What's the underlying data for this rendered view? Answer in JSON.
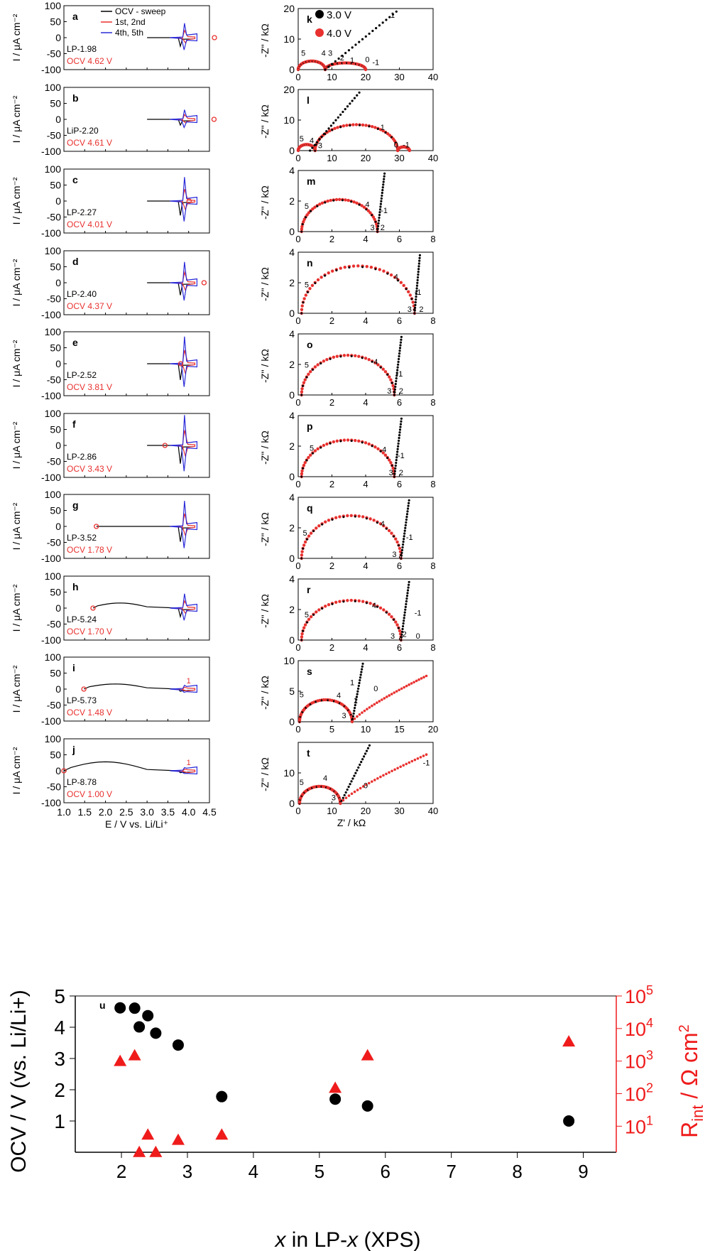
{
  "chart_data": [
    {
      "type": "line",
      "group": "cyclic-voltammetry",
      "ylabel": "I / μA cm⁻²",
      "xlabel": "E / V vs. Li/Li⁺",
      "xlim": [
        1.0,
        4.5
      ],
      "ylim": [
        -100,
        100
      ],
      "xticks": [
        "1.0",
        "1.5",
        "2.0",
        "2.5",
        "3.0",
        "3.5",
        "4.0",
        "4.5"
      ],
      "yticks": [
        "100",
        "50",
        "0",
        "-50",
        "-100"
      ],
      "legend": [
        "OCV - sweep",
        "1st, 2nd",
        "4th, 5th"
      ],
      "colors": {
        "sweep": "#000000",
        "first": "#e8312f",
        "fourth": "#2b2bd9"
      },
      "panels": [
        {
          "letter": "a",
          "sample": "LP-1.98",
          "ocv_label": "OCV 4.62 V",
          "ocv": 4.62,
          "sweep_start": 3.0,
          "peak": 45
        },
        {
          "letter": "b",
          "sample": "LiP-2.20",
          "ocv_label": "OCV 4.61 V",
          "ocv": 4.61,
          "sweep_start": 3.0,
          "peak": 30
        },
        {
          "letter": "c",
          "sample": "LP-2.27",
          "ocv_label": "OCV 4.01 V",
          "ocv": 4.01,
          "sweep_start": 3.0,
          "peak": 75
        },
        {
          "letter": "d",
          "sample": "LP-2.40",
          "ocv_label": "OCV 4.37 V",
          "ocv": 4.37,
          "sweep_start": 3.0,
          "peak": 65
        },
        {
          "letter": "e",
          "sample": "LP-2.52",
          "ocv_label": "OCV 3.81 V",
          "ocv": 3.81,
          "sweep_start": 3.0,
          "peak": 85
        },
        {
          "letter": "f",
          "sample": "LP-2.86",
          "ocv_label": "OCV 3.43 V",
          "ocv": 3.43,
          "sweep_start": 3.0,
          "peak": 95
        },
        {
          "letter": "g",
          "sample": "LP-3.52",
          "ocv_label": "OCV 1.78 V",
          "ocv": 1.78,
          "sweep_start": 1.78,
          "peak": 80
        },
        {
          "letter": "h",
          "sample": "LP-5.24",
          "ocv_label": "OCV 1.70 V",
          "ocv": 1.7,
          "sweep_start": 1.7,
          "peak": 45
        },
        {
          "letter": "i",
          "sample": "LP-5.73",
          "ocv_label": "OCV 1.48 V",
          "ocv": 1.48,
          "sweep_start": 1.48,
          "peak": 12,
          "cycle_label": "1"
        },
        {
          "letter": "j",
          "sample": "LP-8.78",
          "ocv_label": "OCV 1.00 V",
          "ocv": 1.0,
          "sweep_start": 1.0,
          "peak": 10,
          "cycle_label": "1"
        }
      ]
    },
    {
      "type": "scatter",
      "group": "impedance-nyquist",
      "ylabel": "-Z'' / kΩ",
      "xlabel": "Z' / kΩ",
      "legend": [
        "3.0 V",
        "4.0 V"
      ],
      "colors": {
        "v3": "#000000",
        "v4": "#e8312f"
      },
      "panels": [
        {
          "letter": "k",
          "xlim": [
            0,
            40
          ],
          "ylim": [
            0,
            20
          ],
          "xticks": [
            0,
            10,
            20,
            30,
            40
          ],
          "yticks": [
            0,
            10,
            20
          ],
          "arcs": [
            [
              0,
              8,
              2.8
            ],
            [
              8,
              20,
              2.2
            ]
          ],
          "spike_x": 8,
          "spike_slope": 0.9,
          "markers": [
            {
              "t": "5",
              "x": 1.5,
              "y": 4.5
            },
            {
              "t": "4",
              "x": 7.5,
              "y": 4.5
            },
            {
              "t": "3",
              "x": 9.5,
              "y": 4.5
            },
            {
              "t": "2",
              "x": 13,
              "y": 3
            },
            {
              "t": "1",
              "x": 16,
              "y": 2.2
            },
            {
              "t": "0",
              "x": 20.5,
              "y": 2.5
            },
            {
              "t": "-1",
              "x": 23,
              "y": 1.5
            },
            {
              "t": "1",
              "x": 28,
              "y": 17
            }
          ]
        },
        {
          "letter": "l",
          "xlim": [
            0,
            40
          ],
          "ylim": [
            0,
            20
          ],
          "xticks": [
            0,
            10,
            20,
            30,
            40
          ],
          "yticks": [
            0,
            10,
            20
          ],
          "arcs": [
            [
              0,
              5,
              2
            ],
            [
              5,
              29.5,
              8.5
            ],
            [
              29.5,
              33,
              1.2
            ]
          ],
          "spike_x": 3.5,
          "spike_slope": 1.3,
          "markers": [
            {
              "t": "5",
              "x": 1,
              "y": 3
            },
            {
              "t": "4",
              "x": 4,
              "y": 2.5
            },
            {
              "t": "3",
              "x": 6.5,
              "y": 0.8
            },
            {
              "t": "1",
              "x": 25,
              "y": 6.8
            },
            {
              "t": "0",
              "x": 29,
              "y": 1
            },
            {
              "t": "-1",
              "x": 32,
              "y": 1
            }
          ]
        },
        {
          "letter": "m",
          "xlim": [
            0,
            8
          ],
          "ylim": [
            0,
            4
          ],
          "xticks": [
            0,
            2,
            4,
            6,
            8
          ],
          "yticks": [
            0,
            2,
            4
          ],
          "arcs": [
            [
              0.2,
              4.7,
              2.1
            ]
          ],
          "spike_x": 4.7,
          "spike_slope": 9,
          "markers": [
            {
              "t": "5",
              "x": 0.5,
              "y": 1.5
            },
            {
              "t": "4",
              "x": 4.1,
              "y": 1.6
            },
            {
              "t": "-1",
              "x": 5.1,
              "y": 1.2
            },
            {
              "t": "3",
              "x": 4.4,
              "y": 0.1
            },
            {
              "t": "2",
              "x": 5,
              "y": 0.1
            }
          ]
        },
        {
          "letter": "n",
          "xlim": [
            0,
            8
          ],
          "ylim": [
            0,
            4
          ],
          "xticks": [
            0,
            2,
            4,
            6,
            8
          ],
          "yticks": [
            0,
            2,
            4
          ],
          "arcs": [
            [
              0.2,
              6.9,
              3.1
            ]
          ],
          "spike_x": 6.9,
          "spike_slope": 12,
          "markers": [
            {
              "t": "5",
              "x": 0.5,
              "y": 1.7
            },
            {
              "t": "4",
              "x": 5.8,
              "y": 2.2
            },
            {
              "t": "-1",
              "x": 7.1,
              "y": 1.2
            },
            {
              "t": "3",
              "x": 6.6,
              "y": 0.1
            },
            {
              "t": "2",
              "x": 7.3,
              "y": 0.1
            }
          ]
        },
        {
          "letter": "o",
          "xlim": [
            0,
            8
          ],
          "ylim": [
            0,
            4
          ],
          "xticks": [
            0,
            2,
            4,
            6,
            8
          ],
          "yticks": [
            0,
            2,
            4
          ],
          "arcs": [
            [
              0.2,
              5.7,
              2.6
            ]
          ],
          "spike_x": 5.7,
          "spike_slope": 9,
          "markers": [
            {
              "t": "5",
              "x": 0.5,
              "y": 1.8
            },
            {
              "t": "4",
              "x": 4.6,
              "y": 2
            },
            {
              "t": "-1",
              "x": 6,
              "y": 1.2
            },
            {
              "t": "3",
              "x": 5.4,
              "y": 0.1
            },
            {
              "t": "2",
              "x": 6.1,
              "y": 0.1
            }
          ]
        },
        {
          "letter": "p",
          "xlim": [
            0,
            8
          ],
          "ylim": [
            0,
            4
          ],
          "xticks": [
            0,
            2,
            4,
            6,
            8
          ],
          "yticks": [
            0,
            2,
            4
          ],
          "arcs": [
            [
              0.2,
              5.7,
              2.4
            ]
          ],
          "spike_x": 5.7,
          "spike_slope": 9,
          "markers": [
            {
              "t": "5",
              "x": 0.8,
              "y": 1.7
            },
            {
              "t": "4",
              "x": 5.1,
              "y": 1.6
            },
            {
              "t": "-1",
              "x": 6.1,
              "y": 1.2
            },
            {
              "t": "3",
              "x": 5.5,
              "y": 0.1
            },
            {
              "t": "2",
              "x": 6.1,
              "y": 0.1
            }
          ]
        },
        {
          "letter": "q",
          "xlim": [
            0,
            8
          ],
          "ylim": [
            0,
            4
          ],
          "xticks": [
            0,
            2,
            4,
            6,
            8
          ],
          "yticks": [
            0,
            2,
            4
          ],
          "arcs": [
            [
              0.2,
              6.1,
              2.8
            ]
          ],
          "spike_x": 6.1,
          "spike_slope": 8,
          "markers": [
            {
              "t": "5",
              "x": 0.4,
              "y": 1.5
            },
            {
              "t": "4",
              "x": 5,
              "y": 2.1
            },
            {
              "t": "-1",
              "x": 6.6,
              "y": 1.2
            },
            {
              "t": "3",
              "x": 5.7,
              "y": 0.1
            }
          ]
        },
        {
          "letter": "r",
          "xlim": [
            0,
            8
          ],
          "ylim": [
            0,
            4
          ],
          "xticks": [
            0,
            2,
            4,
            6,
            8
          ],
          "yticks": [
            0,
            2,
            4
          ],
          "arcs": [
            [
              0.2,
              6.1,
              2.6
            ]
          ],
          "spike_x": 6.1,
          "spike_slope": 8,
          "markers": [
            {
              "t": "5",
              "x": 0.5,
              "y": 1.5
            },
            {
              "t": "4",
              "x": 4.5,
              "y": 2.1
            },
            {
              "t": "-1",
              "x": 7.1,
              "y": 1.6
            },
            {
              "t": "3",
              "x": 5.6,
              "y": 0.1
            },
            {
              "t": "2",
              "x": 6.3,
              "y": 0.2
            },
            {
              "t": "0",
              "x": 7.1,
              "y": 0.1
            }
          ]
        },
        {
          "letter": "s",
          "xlim": [
            0,
            20
          ],
          "ylim": [
            0,
            10
          ],
          "xticks": [
            0,
            5,
            10,
            15,
            20
          ],
          "yticks": [
            0,
            5,
            10
          ],
          "arcs": [
            [
              0.2,
              8,
              3.6
            ]
          ],
          "spike_x": 8,
          "spike_slope": 6,
          "tail_end": [
            19,
            7.5
          ],
          "markers": [
            {
              "t": "5",
              "x": 0.5,
              "y": 4
            },
            {
              "t": "4",
              "x": 6,
              "y": 3.9
            },
            {
              "t": "1",
              "x": 8,
              "y": 6
            },
            {
              "t": "1",
              "x": 8.5,
              "y": 3
            },
            {
              "t": "3",
              "x": 6.8,
              "y": 0.6
            },
            {
              "t": "0",
              "x": 11.5,
              "y": 5
            }
          ]
        },
        {
          "letter": "t",
          "xlim": [
            0,
            40
          ],
          "ylim": [
            0,
            20
          ],
          "xticks": [
            0,
            10,
            20,
            30,
            40
          ],
          "yticks": [
            0,
            10
          ],
          "arcs": [
            [
              0.4,
              12.5,
              5.6
            ]
          ],
          "spike_x": 12.5,
          "spike_slope": 2.2,
          "tail_end": [
            38,
            16
          ],
          "markers": [
            {
              "t": "5",
              "x": 1,
              "y": 6
            },
            {
              "t": "4",
              "x": 8,
              "y": 7.5
            },
            {
              "t": "3",
              "x": 10.5,
              "y": 1
            },
            {
              "t": "0",
              "x": 20,
              "y": 5
            },
            {
              "t": "-1",
              "x": 38,
              "y": 12.5
            }
          ]
        }
      ]
    },
    {
      "type": "scatter",
      "letter": "u",
      "xlabel": "x in LP-x (XPS)",
      "ylabel": "OCV / V (vs. Li/Li+)",
      "y2label": "R_int / Ω cm²",
      "xlim": [
        1.3,
        9.5
      ],
      "ylim": [
        0,
        5
      ],
      "y2lim_log10": [
        0.2,
        5
      ],
      "xticks": [
        "2",
        "3",
        "4",
        "5",
        "6",
        "7",
        "8",
        "9"
      ],
      "yticks": [
        "1",
        "2",
        "3",
        "4",
        "5"
      ],
      "y2ticks": [
        "10",
        "10",
        "10",
        "10",
        "10"
      ],
      "y2tick_exponents": [
        "1",
        "2",
        "3",
        "4",
        "5"
      ],
      "log_scale_y2": true,
      "series": [
        {
          "name": "OCV",
          "marker": "circle",
          "color": "#000000",
          "x": [
            1.98,
            2.2,
            2.27,
            2.4,
            2.52,
            2.86,
            3.52,
            5.24,
            5.73,
            8.78
          ],
          "y": [
            4.62,
            4.61,
            4.01,
            4.37,
            3.81,
            3.43,
            1.78,
            1.7,
            1.48,
            1.0
          ]
        },
        {
          "name": "R_int",
          "marker": "triangle",
          "color": "#ef1b1b",
          "x": [
            1.98,
            2.2,
            2.27,
            2.4,
            2.52,
            2.86,
            3.52,
            5.24,
            5.73,
            8.78
          ],
          "y": [
            1000,
            1500,
            1.6,
            5.5,
            1.6,
            3.8,
            5.5,
            150,
            1500,
            4000
          ]
        }
      ]
    }
  ]
}
